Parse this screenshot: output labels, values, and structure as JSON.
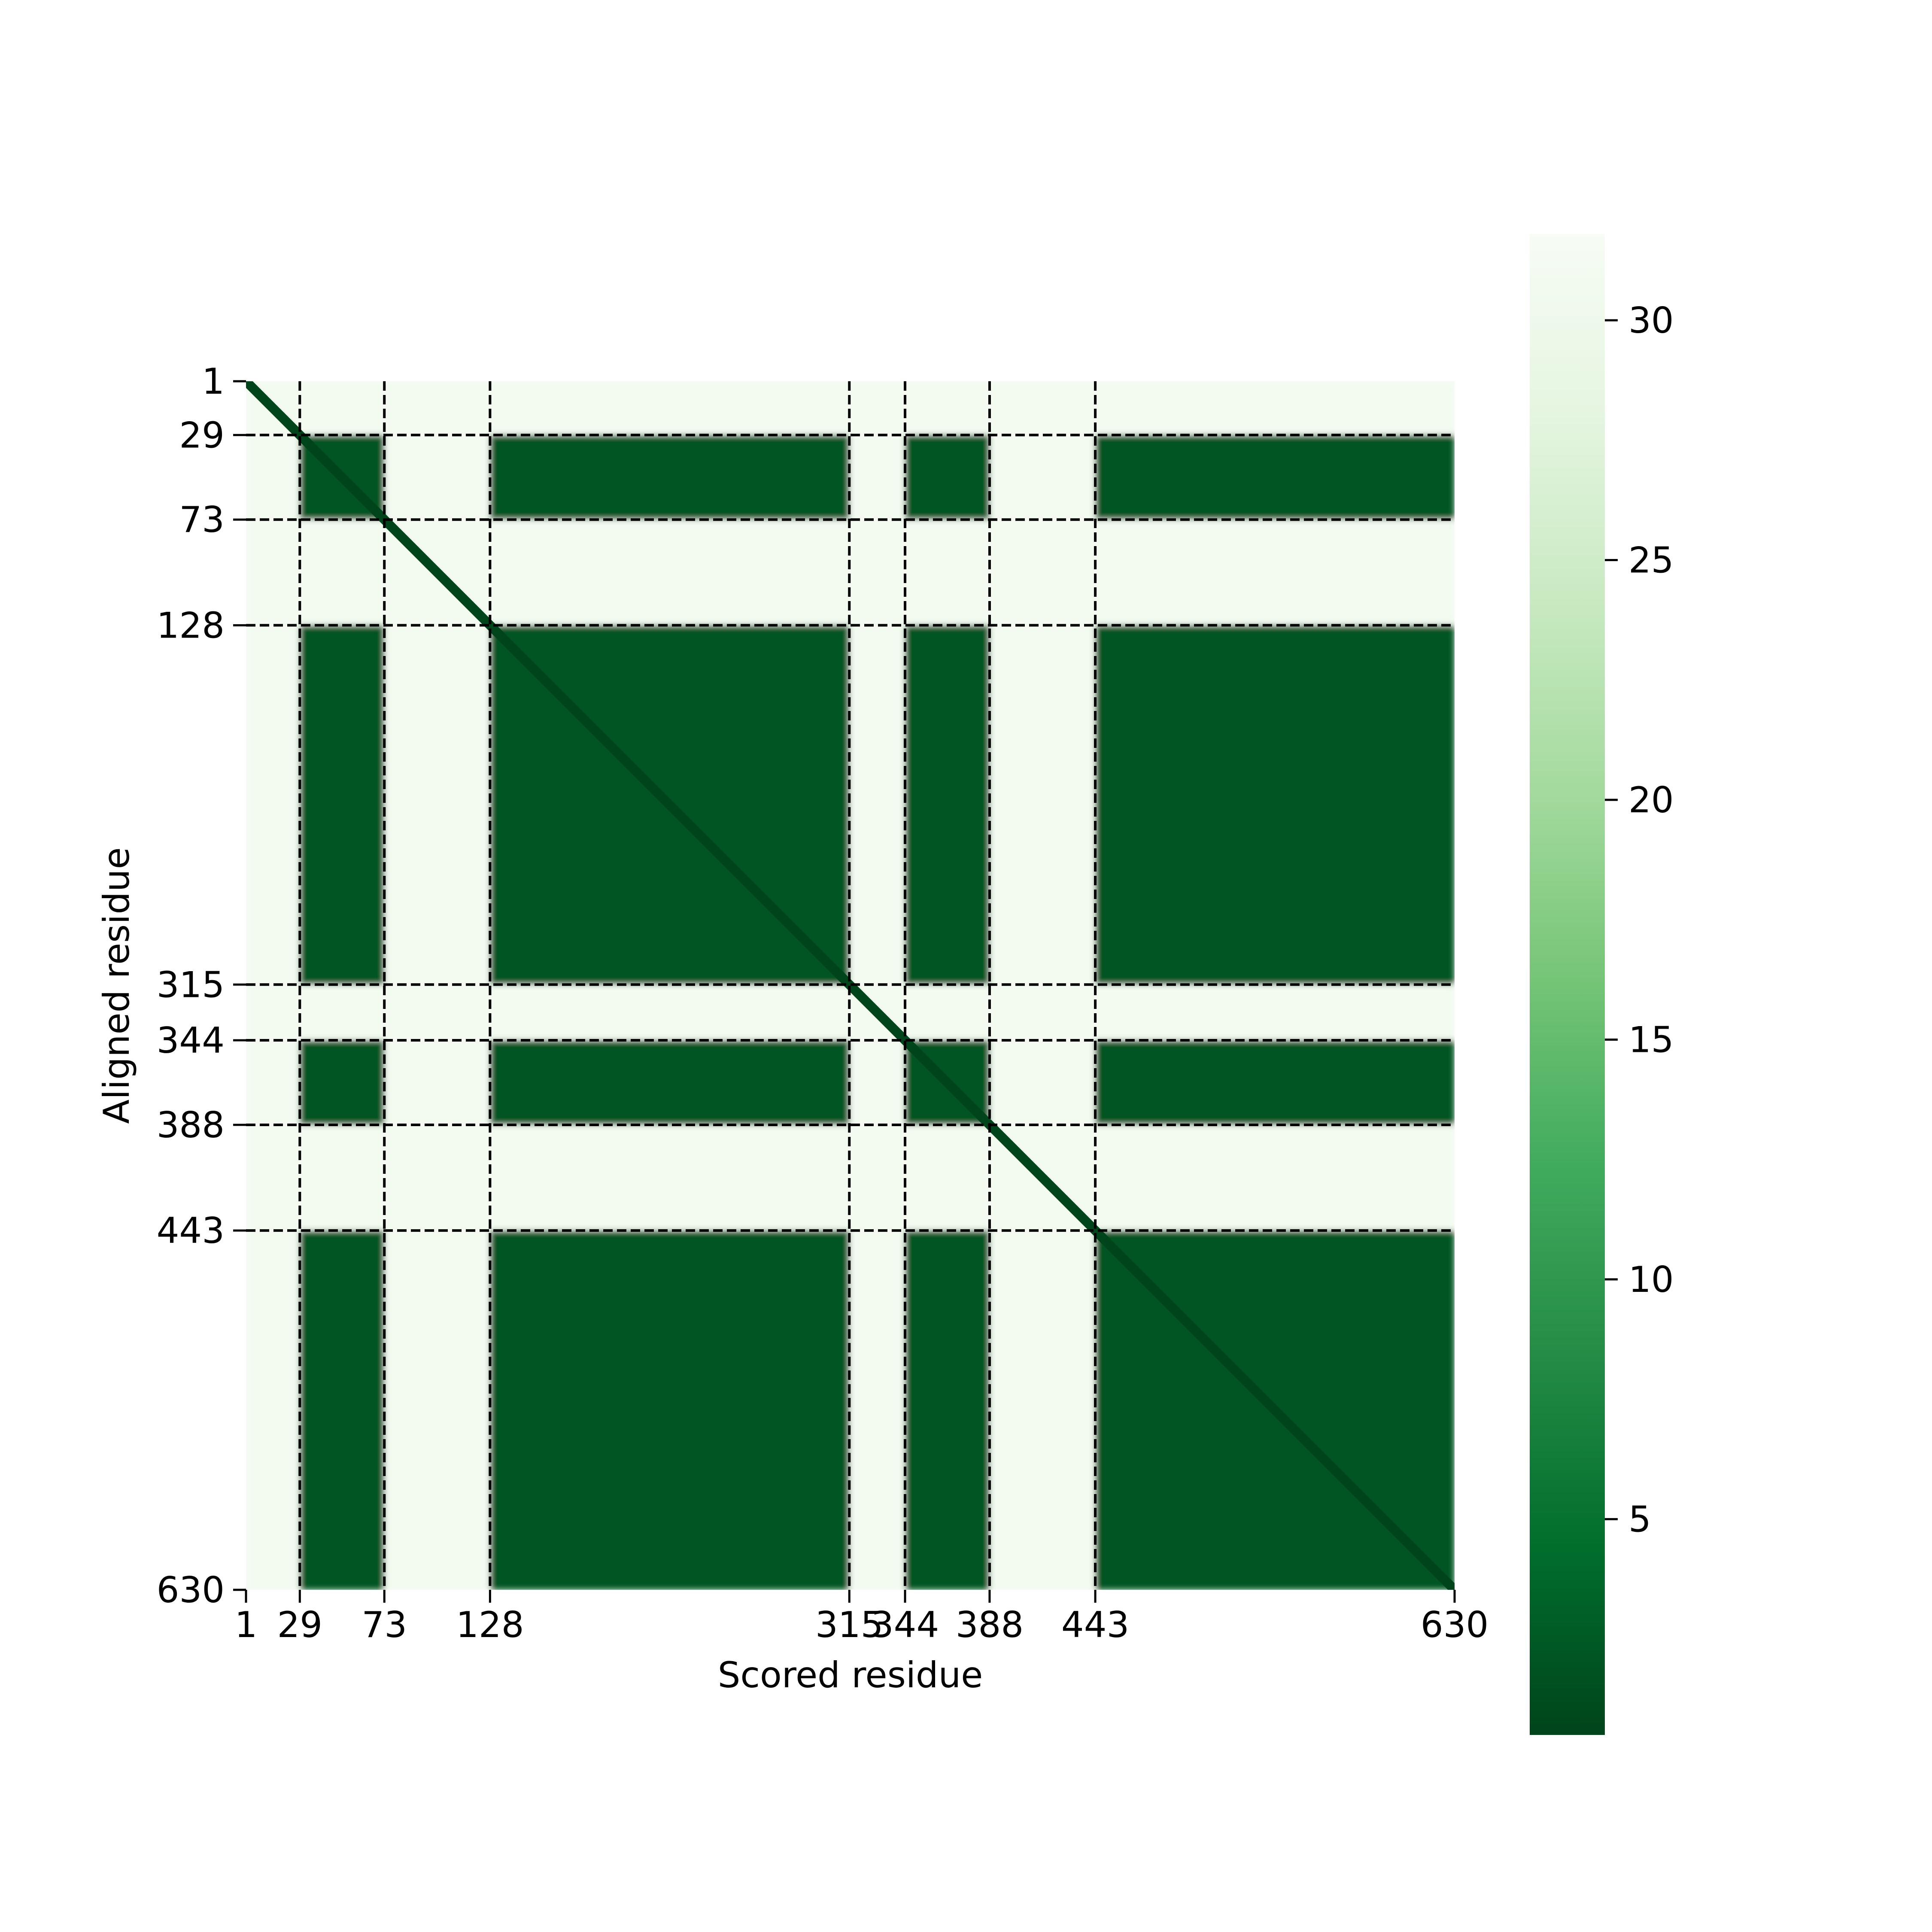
{
  "chart_data": {
    "type": "heatmap",
    "title": "",
    "xlabel": "Scored residue",
    "ylabel": "Aligned residue",
    "n_residues": 630,
    "x_ticks": [
      1,
      29,
      73,
      128,
      315,
      344,
      388,
      443,
      630
    ],
    "y_ticks": [
      1,
      29,
      73,
      128,
      315,
      344,
      388,
      443,
      630
    ],
    "x_tick_labels": [
      "1",
      "29",
      "73",
      "128",
      "315",
      "344",
      "388",
      "443",
      "630"
    ],
    "y_tick_labels": [
      "1",
      "29",
      "73",
      "128",
      "315",
      "344",
      "388",
      "443",
      "630"
    ],
    "boundaries": [
      29,
      73,
      128,
      315,
      344,
      388,
      443
    ],
    "segments": [
      {
        "start": 1,
        "end": 29,
        "confident": false
      },
      {
        "start": 29,
        "end": 73,
        "confident": true
      },
      {
        "start": 73,
        "end": 128,
        "confident": false
      },
      {
        "start": 128,
        "end": 315,
        "confident": true
      },
      {
        "start": 315,
        "end": 344,
        "confident": false
      },
      {
        "start": 344,
        "end": 388,
        "confident": true
      },
      {
        "start": 388,
        "end": 443,
        "confident": false
      },
      {
        "start": 443,
        "end": 630,
        "confident": true
      }
    ],
    "value_low": 2,
    "value_high": 31,
    "diagonal_value": 0.5,
    "colorbar": {
      "range": [
        0.5,
        31.8
      ],
      "ticks": [
        5,
        10,
        15,
        20,
        25,
        30
      ],
      "tick_labels": [
        "5",
        "10",
        "15",
        "20",
        "25",
        "30"
      ],
      "colormap": "Greens_r"
    },
    "colors": {
      "low": "#00441b",
      "mid": "#41ab5d",
      "high": "#f7fcf5"
    },
    "grid": false,
    "boundary_lines": "dashed"
  }
}
